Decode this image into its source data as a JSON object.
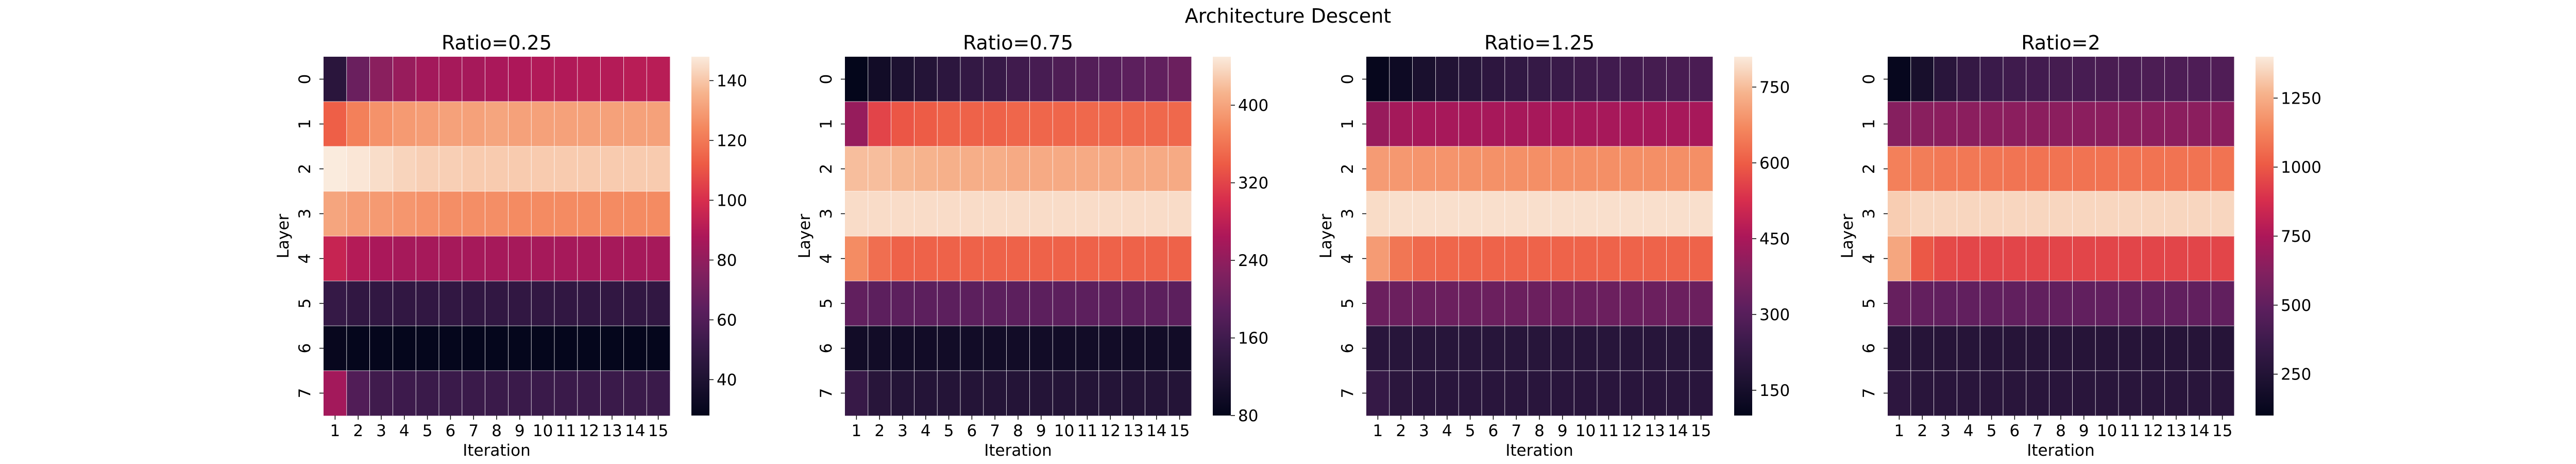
{
  "figure": {
    "title": "Architecture Descent"
  },
  "chart_data": [
    {
      "type": "heatmap",
      "title": "Ratio=0.25",
      "xlabel": "Iteration",
      "ylabel": "Layer",
      "x": [
        "1",
        "2",
        "3",
        "4",
        "5",
        "6",
        "7",
        "8",
        "9",
        "10",
        "11",
        "12",
        "13",
        "14",
        "15"
      ],
      "y": [
        "0",
        "1",
        "2",
        "3",
        "4",
        "5",
        "6",
        "7"
      ],
      "colorbar": {
        "min": 28,
        "max": 148,
        "ticks": [
          40,
          60,
          80,
          100,
          120,
          140
        ]
      },
      "values": [
        [
          45,
          68,
          78,
          82,
          85,
          86,
          86,
          87,
          88,
          89,
          89,
          90,
          90,
          91,
          91
        ],
        [
          113,
          122,
          127,
          129,
          130,
          131,
          131,
          132,
          131,
          131,
          131,
          131,
          131,
          131,
          131
        ],
        [
          148,
          147,
          145,
          143,
          142,
          142,
          141,
          141,
          141,
          141,
          141,
          141,
          141,
          141,
          141
        ],
        [
          132,
          130,
          129,
          128,
          127,
          126,
          126,
          126,
          125,
          125,
          125,
          125,
          125,
          125,
          125
        ],
        [
          95,
          90,
          87,
          86,
          86,
          86,
          86,
          86,
          86,
          86,
          86,
          86,
          86,
          86,
          86
        ],
        [
          50,
          48,
          48,
          48,
          48,
          48,
          48,
          48,
          48,
          48,
          48,
          48,
          48,
          48,
          48
        ],
        [
          30,
          29,
          29,
          29,
          29,
          29,
          29,
          29,
          29,
          29,
          29,
          29,
          29,
          29,
          29
        ],
        [
          85,
          60,
          54,
          53,
          52,
          52,
          52,
          52,
          52,
          52,
          52,
          52,
          52,
          52,
          52
        ]
      ]
    },
    {
      "type": "heatmap",
      "title": "Ratio=0.75",
      "xlabel": "Iteration",
      "ylabel": "Layer",
      "x": [
        "1",
        "2",
        "3",
        "4",
        "5",
        "6",
        "7",
        "8",
        "9",
        "10",
        "11",
        "12",
        "13",
        "14",
        "15"
      ],
      "y": [
        "0",
        "1",
        "2",
        "3",
        "4",
        "5",
        "6",
        "7"
      ],
      "colorbar": {
        "min": 80,
        "max": 450,
        "ticks": [
          80,
          160,
          240,
          320,
          400
        ]
      },
      "values": [
        [
          82,
          100,
          115,
          125,
          135,
          145,
          150,
          160,
          168,
          175,
          180,
          185,
          190,
          195,
          205
        ],
        [
          245,
          320,
          335,
          340,
          345,
          345,
          345,
          348,
          348,
          348,
          350,
          350,
          350,
          350,
          350
        ],
        [
          420,
          420,
          415,
          412,
          410,
          408,
          408,
          405,
          405,
          405,
          405,
          405,
          405,
          405,
          405
        ],
        [
          440,
          440,
          440,
          440,
          440,
          440,
          440,
          440,
          440,
          440,
          440,
          440,
          440,
          440,
          440
        ],
        [
          380,
          355,
          345,
          345,
          345,
          345,
          345,
          345,
          345,
          345,
          345,
          345,
          345,
          345,
          345
        ],
        [
          195,
          190,
          190,
          190,
          190,
          190,
          190,
          190,
          190,
          190,
          190,
          190,
          190,
          190,
          190
        ],
        [
          100,
          100,
          100,
          100,
          100,
          100,
          100,
          100,
          100,
          100,
          100,
          100,
          100,
          100,
          100
        ],
        [
          150,
          130,
          125,
          125,
          125,
          125,
          125,
          125,
          125,
          125,
          125,
          125,
          125,
          125,
          125
        ]
      ]
    },
    {
      "type": "heatmap",
      "title": "Ratio=1.25",
      "xlabel": "Iteration",
      "ylabel": "Layer",
      "x": [
        "1",
        "2",
        "3",
        "4",
        "5",
        "6",
        "7",
        "8",
        "9",
        "10",
        "11",
        "12",
        "13",
        "14",
        "15"
      ],
      "y": [
        "0",
        "1",
        "2",
        "3",
        "4",
        "5",
        "6",
        "7"
      ],
      "colorbar": {
        "min": 100,
        "max": 810,
        "ticks": [
          150,
          300,
          450,
          600,
          750
        ]
      },
      "values": [
        [
          110,
          130,
          160,
          180,
          195,
          210,
          220,
          230,
          240,
          250,
          255,
          260,
          265,
          270,
          275
        ],
        [
          420,
          440,
          445,
          445,
          445,
          445,
          445,
          445,
          445,
          445,
          445,
          445,
          445,
          445,
          445
        ],
        [
          700,
          695,
          690,
          688,
          685,
          683,
          682,
          680,
          680,
          680,
          680,
          680,
          680,
          680,
          680
        ],
        [
          790,
          795,
          795,
          795,
          795,
          795,
          795,
          795,
          795,
          795,
          795,
          795,
          795,
          795,
          795
        ],
        [
          700,
          640,
          620,
          615,
          612,
          610,
          610,
          610,
          610,
          610,
          610,
          610,
          610,
          610,
          610
        ],
        [
          340,
          340,
          340,
          340,
          340,
          340,
          340,
          340,
          340,
          340,
          340,
          340,
          340,
          340,
          340
        ],
        [
          200,
          195,
          195,
          195,
          195,
          195,
          195,
          195,
          195,
          195,
          195,
          195,
          195,
          195,
          195
        ],
        [
          230,
          205,
          200,
          200,
          200,
          200,
          200,
          200,
          200,
          200,
          200,
          200,
          200,
          200,
          200
        ]
      ]
    },
    {
      "type": "heatmap",
      "title": "Ratio=2",
      "xlabel": "Iteration",
      "ylabel": "Layer",
      "x": [
        "1",
        "2",
        "3",
        "4",
        "5",
        "6",
        "7",
        "8",
        "9",
        "10",
        "11",
        "12",
        "13",
        "14",
        "15"
      ],
      "y": [
        "0",
        "1",
        "2",
        "3",
        "4",
        "5",
        "6",
        "7"
      ],
      "colorbar": {
        "min": 100,
        "max": 1400,
        "ticks": [
          250,
          500,
          750,
          1000,
          1250
        ]
      },
      "values": [
        [
          120,
          200,
          280,
          330,
          360,
          380,
          390,
          400,
          410,
          415,
          420,
          425,
          430,
          435,
          440
        ],
        [
          630,
          640,
          645,
          645,
          645,
          645,
          645,
          645,
          645,
          645,
          645,
          645,
          645,
          645,
          645
        ],
        [
          1120,
          1110,
          1100,
          1095,
          1090,
          1085,
          1080,
          1080,
          1080,
          1080,
          1080,
          1080,
          1080,
          1080,
          1080
        ],
        [
          1330,
          1350,
          1350,
          1350,
          1350,
          1350,
          1350,
          1350,
          1350,
          1350,
          1350,
          1350,
          1350,
          1350,
          1350
        ],
        [
          1230,
          1000,
          960,
          950,
          945,
          945,
          945,
          945,
          945,
          945,
          945,
          945,
          945,
          945,
          945
        ],
        [
          520,
          510,
          505,
          505,
          505,
          505,
          505,
          505,
          505,
          505,
          505,
          505,
          505,
          505,
          505
        ],
        [
          270,
          265,
          265,
          265,
          265,
          265,
          265,
          265,
          265,
          265,
          265,
          265,
          265,
          265,
          265
        ],
        [
          300,
          280,
          280,
          280,
          280,
          280,
          280,
          280,
          280,
          280,
          280,
          280,
          280,
          280,
          280
        ]
      ]
    }
  ]
}
